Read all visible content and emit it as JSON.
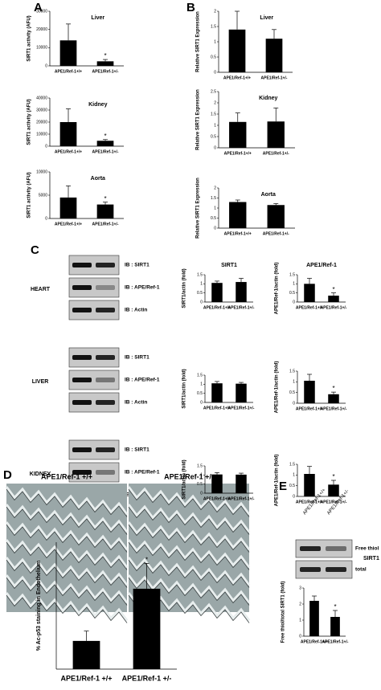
{
  "panel_labels": [
    "A",
    "B",
    "C",
    "D",
    "E"
  ],
  "blot": {
    "rows": [
      "IB : SIRT1",
      "IB : APE/Ref-1",
      "IB : Actin"
    ],
    "tissues": [
      "HEART",
      "LIVER",
      "KIDNEY"
    ],
    "lanes": [
      "APE1/Ref-1+/+",
      "APE1/Ref-1+/-"
    ]
  },
  "micrograph_labels": [
    "APE1/Ref-1 +/+",
    "APE1/Ref-1 +/-"
  ],
  "thiol_blot": {
    "lanes": [
      "APE1/Ref-1+/+",
      "APE1/Ref-1+/-"
    ],
    "rows": [
      "Free thiol",
      "total"
    ],
    "protein": "SIRT1"
  },
  "chart_data": [
    {
      "type": "bar",
      "title": "Liver",
      "ylabel": "SIRT1 activity (AFU)",
      "categories": [
        "APE1/Ref-1+/+",
        "APE1/Ref-1+/-"
      ],
      "values": [
        14000,
        2500
      ],
      "errors": [
        9000,
        1000
      ],
      "sig": [
        null,
        "*"
      ],
      "color": "#000000",
      "ylim": [
        0,
        30000
      ],
      "yticks": [
        0,
        10000,
        20000,
        30000
      ]
    },
    {
      "type": "bar",
      "title": "Kidney",
      "ylabel": "SIRT1 activity (AFU)",
      "categories": [
        "APE1/Ref-1+/+",
        "APE1/Ref-1+/-"
      ],
      "values": [
        20000,
        4500
      ],
      "errors": [
        11000,
        1000
      ],
      "sig": [
        null,
        "*"
      ],
      "color": "#000000",
      "ylim": [
        0,
        40000
      ],
      "yticks": [
        0,
        10000,
        20000,
        30000,
        40000
      ]
    },
    {
      "type": "bar",
      "title": "Aorta",
      "ylabel": "SIRT1 activity (AFU)",
      "categories": [
        "APE1/Ref-1+/+",
        "APE1/Ref-1+/-"
      ],
      "values": [
        4500,
        3000
      ],
      "errors": [
        2500,
        500
      ],
      "sig": [
        null,
        "*"
      ],
      "color": "#000000",
      "ylim": [
        0,
        10000
      ],
      "yticks": [
        0,
        5000,
        10000
      ]
    },
    {
      "type": "bar",
      "title": "Liver",
      "ylabel": "Relative SIRT1 Expression",
      "categories": [
        "APE1/Ref-1+/+",
        "APE1/Ref-1+/-"
      ],
      "values": [
        1.4,
        1.1
      ],
      "errors": [
        0.6,
        0.3
      ],
      "color": "#000000",
      "ylim": [
        0,
        2
      ],
      "yticks": [
        0,
        0.5,
        1,
        1.5,
        2
      ]
    },
    {
      "type": "bar",
      "title": "Kidney",
      "ylabel": "Relative SIRT1 Expression",
      "categories": [
        "APE1/Ref-1+/+",
        "APE1/Ref-1+/-"
      ],
      "values": [
        1.15,
        1.17
      ],
      "errors": [
        0.4,
        0.6
      ],
      "color": "#000000",
      "ylim": [
        0,
        2.5
      ],
      "yticks": [
        0,
        0.5,
        1,
        1.5,
        2,
        2.5
      ]
    },
    {
      "type": "bar",
      "title": "Aorta",
      "ylabel": "Relative SIRT1 Expression",
      "categories": [
        "APE1/Ref-1+/+",
        "APE1/Ref-1+/-"
      ],
      "values": [
        1.3,
        1.15
      ],
      "errors": [
        0.1,
        0.07
      ],
      "color": "#000000",
      "ylim": [
        0,
        2
      ],
      "yticks": [
        0,
        0.5,
        1,
        1.5,
        2
      ]
    },
    {
      "type": "bar",
      "title": "SIRT1",
      "ylabel": "SIRT1/actin (fold)",
      "categories": [
        "APE1/Ref-1+/+",
        "APE1/Ref-1+/-"
      ],
      "values": [
        1.05,
        1.1
      ],
      "errors": [
        0.1,
        0.2
      ],
      "color": "#000000",
      "ylim": [
        0,
        1.5
      ],
      "yticks": [
        0,
        0.5,
        1,
        1.5
      ]
    },
    {
      "type": "bar",
      "title": "APE1/Ref-1",
      "ylabel": "APE1/Ref-1/actin (fold)",
      "categories": [
        "APE1/Ref-1+/+",
        "APE1/Ref-1+/-"
      ],
      "values": [
        1.0,
        0.35
      ],
      "errors": [
        0.3,
        0.15
      ],
      "sig": [
        null,
        "*"
      ],
      "color": "#000000",
      "ylim": [
        0,
        1.5
      ],
      "yticks": [
        0,
        0.5,
        1,
        1.5
      ]
    },
    {
      "type": "bar",
      "ylabel": "SIRT1/actin (fold)",
      "categories": [
        "APE1/Ref-1+/+",
        "APE1/Ref-1+/-"
      ],
      "values": [
        1.05,
        1.03
      ],
      "errors": [
        0.1,
        0.07
      ],
      "color": "#000000",
      "ylim": [
        0,
        1.5
      ],
      "yticks": [
        0,
        0.5,
        1,
        1.5
      ]
    },
    {
      "type": "bar",
      "ylabel": "APE1/Ref-1/actin (fold)",
      "categories": [
        "APE1/Ref-1+/+",
        "APE1/Ref-1+/-"
      ],
      "values": [
        1.05,
        0.42
      ],
      "errors": [
        0.3,
        0.1
      ],
      "sig": [
        null,
        "*"
      ],
      "color": "#000000",
      "ylim": [
        0,
        1.5
      ],
      "yticks": [
        0,
        0.5,
        1,
        1.5
      ]
    },
    {
      "type": "bar",
      "ylabel": "SIRT1/actin (fold)",
      "categories": [
        "APE1/Ref-1+/+",
        "APE1/Ref-1+/-"
      ],
      "values": [
        1.03,
        1.02
      ],
      "errors": [
        0.1,
        0.08
      ],
      "color": "#000000",
      "ylim": [
        0,
        1.5
      ],
      "yticks": [
        0,
        0.5,
        1,
        1.5
      ]
    },
    {
      "type": "bar",
      "ylabel": "APE1/Ref-1/actin (fold)",
      "categories": [
        "APE1/Ref-1+/+",
        "APE1/Ref-1+/-"
      ],
      "values": [
        1.05,
        0.55
      ],
      "errors": [
        0.35,
        0.2
      ],
      "sig": [
        null,
        "*"
      ],
      "color": "#000000",
      "ylim": [
        0,
        1.5
      ],
      "yticks": [
        0,
        0.5,
        1,
        1.5
      ]
    },
    {
      "type": "bar",
      "ylabel": "% Ac-p53 staining in Endothelium",
      "categories": [
        "APE1/Ref-1 +/+",
        "APE1/Ref-1 +/-"
      ],
      "values": [
        20,
        57
      ],
      "errors": [
        7,
        18
      ],
      "sig": [
        null,
        "*"
      ],
      "color": "#000000",
      "ylim": [
        0,
        90
      ]
    },
    {
      "type": "bar",
      "ylabel": "Free thiol/total SIRT1 (fold)",
      "categories": [
        "APE1/Ref-1+/+",
        "APE1/Ref-1+/-"
      ],
      "values": [
        2.2,
        1.2
      ],
      "errors": [
        0.3,
        0.4
      ],
      "sig": [
        null,
        "*"
      ],
      "color": "#000000",
      "ylim": [
        0,
        3
      ],
      "yticks": [
        0,
        1,
        2,
        3
      ]
    }
  ]
}
